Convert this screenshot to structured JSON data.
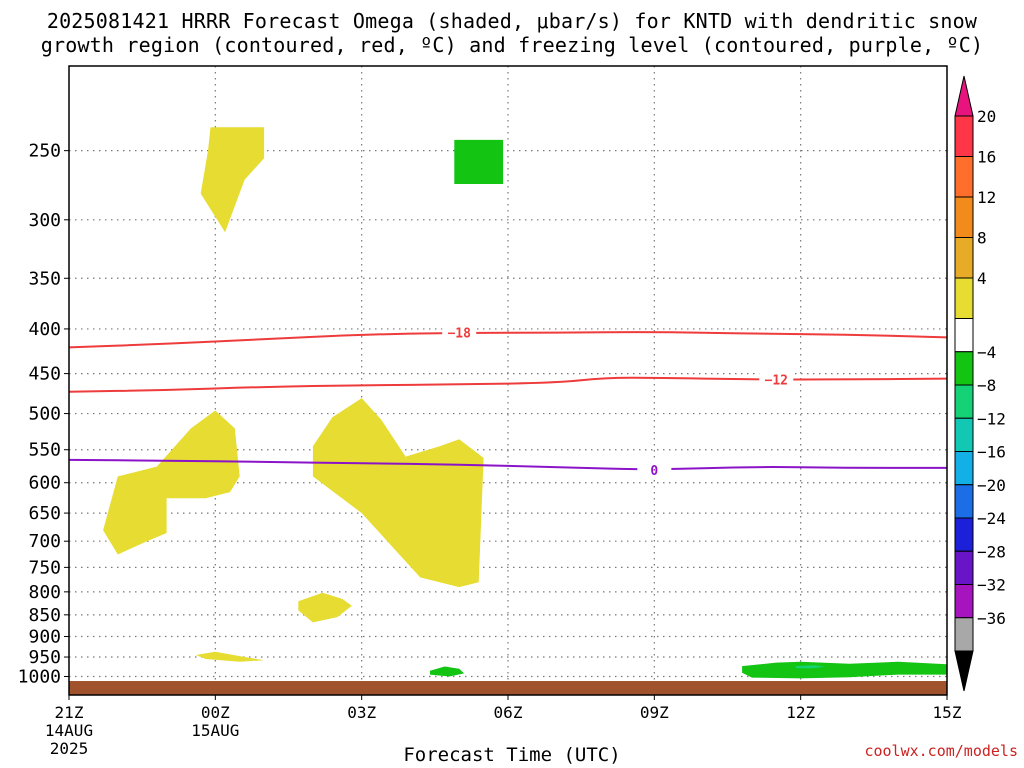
{
  "title": {
    "line1": "2025081421 HRRR Forecast Omega (shaded, μbar/s) for KNTD with dendritic snow",
    "line2": "growth region (contoured, red, ºC) and freezing level (contoured, purple, ºC)"
  },
  "credit": "coolwx.com/models",
  "chart_data": {
    "type": "heatmap",
    "xlabel": "Forecast Time (UTC)",
    "x_unit": "forecast hour",
    "x_ticks": [
      {
        "value": 0,
        "lines": [
          "21Z",
          "14AUG",
          "2025"
        ]
      },
      {
        "value": 3,
        "lines": [
          "00Z",
          "15AUG"
        ]
      },
      {
        "value": 6,
        "lines": [
          "03Z"
        ]
      },
      {
        "value": 9,
        "lines": [
          "06Z"
        ]
      },
      {
        "value": 12,
        "lines": [
          "09Z"
        ]
      },
      {
        "value": 15,
        "lines": [
          "12Z"
        ]
      },
      {
        "value": 18,
        "lines": [
          "15Z"
        ]
      }
    ],
    "xlim": [
      0,
      18
    ],
    "y_unit": "hPa",
    "y_scale": "log",
    "y_reversed": true,
    "ylim": [
      1050,
      200
    ],
    "y_ticks": [
      250,
      300,
      350,
      400,
      450,
      500,
      550,
      600,
      650,
      700,
      750,
      800,
      850,
      900,
      950,
      1000
    ],
    "grid": true,
    "colorbar": {
      "levels": [
        "20",
        "16",
        "12",
        "8",
        "4",
        "−4",
        "−8",
        "−12",
        "−16",
        "−20",
        "−24",
        "−28",
        "−32",
        "−36"
      ],
      "colors": [
        "#ff3548",
        "#ff6e2a",
        "#f28a1c",
        "#e8ab28",
        "#e6dc32",
        "#ffffff",
        "#13c413",
        "#15d277",
        "#12c8b4",
        "#12b0e6",
        "#1c6ee6",
        "#1c20d8",
        "#6a14c8",
        "#a614c0",
        "#a8a8a8"
      ],
      "top_cap": "#e8147e",
      "bottom_cap": "#000000"
    },
    "shaded_regions": [
      {
        "value_range": [
          4,
          8
        ],
        "color": "#e6dc32",
        "points": [
          [
            2.9,
            235
          ],
          [
            4.0,
            235
          ],
          [
            4.0,
            255
          ],
          [
            3.6,
            270
          ],
          [
            3.2,
            310
          ],
          [
            2.7,
            280
          ],
          [
            2.85,
            250
          ]
        ]
      },
      {
        "value_range": [
          -8,
          -4
        ],
        "color": "#13c413",
        "points": [
          [
            7.9,
            243
          ],
          [
            8.9,
            243
          ],
          [
            8.9,
            273
          ],
          [
            7.9,
            273
          ]
        ]
      },
      {
        "value_range": [
          4,
          8
        ],
        "color": "#e6dc32",
        "points": [
          [
            1.0,
            590
          ],
          [
            1.8,
            575
          ],
          [
            2.5,
            520
          ],
          [
            3.0,
            496
          ],
          [
            3.4,
            520
          ],
          [
            3.5,
            590
          ],
          [
            3.3,
            615
          ],
          [
            2.8,
            625
          ],
          [
            2.0,
            625
          ],
          [
            2.0,
            685
          ],
          [
            1.6,
            700
          ],
          [
            1.0,
            725
          ],
          [
            0.7,
            680
          ]
        ]
      },
      {
        "value_range": [
          4,
          8
        ],
        "color": "#e6dc32",
        "points": [
          [
            5.0,
            545
          ],
          [
            5.4,
            505
          ],
          [
            6.0,
            480
          ],
          [
            6.4,
            508
          ],
          [
            6.9,
            560
          ],
          [
            7.6,
            545
          ],
          [
            8.0,
            535
          ],
          [
            8.5,
            562
          ],
          [
            8.4,
            780
          ],
          [
            8.0,
            790
          ],
          [
            7.2,
            770
          ],
          [
            6.0,
            650
          ],
          [
            5.0,
            590
          ]
        ]
      },
      {
        "value_range": [
          4,
          8
        ],
        "color": "#e6dc32",
        "points": [
          [
            4.7,
            820
          ],
          [
            5.2,
            802
          ],
          [
            5.6,
            815
          ],
          [
            5.8,
            830
          ],
          [
            5.5,
            855
          ],
          [
            5.0,
            867
          ],
          [
            4.7,
            840
          ]
        ]
      },
      {
        "value_range": [
          4,
          8
        ],
        "color": "#e6dc32",
        "points": [
          [
            2.6,
            945
          ],
          [
            3.0,
            937
          ],
          [
            3.6,
            950
          ],
          [
            4.0,
            958
          ],
          [
            3.5,
            962
          ],
          [
            2.8,
            955
          ]
        ]
      },
      {
        "value_range": [
          -8,
          -4
        ],
        "color": "#13c413",
        "points": [
          [
            7.4,
            985
          ],
          [
            7.7,
            974
          ],
          [
            8.0,
            980
          ],
          [
            8.1,
            992
          ],
          [
            7.8,
            1000
          ],
          [
            7.4,
            995
          ]
        ]
      },
      {
        "value_range": [
          -8,
          -4
        ],
        "color": "#13c413",
        "points": [
          [
            13.8,
            973
          ],
          [
            14.5,
            964
          ],
          [
            15.0,
            962
          ],
          [
            16.0,
            967
          ],
          [
            17.0,
            962
          ],
          [
            18.0,
            968
          ],
          [
            18.0,
            995
          ],
          [
            17.0,
            995
          ],
          [
            16.0,
            1002
          ],
          [
            15.0,
            1005
          ],
          [
            14.0,
            1003
          ],
          [
            13.8,
            990
          ]
        ]
      },
      {
        "value_range": [
          -12,
          -8
        ],
        "color": "#15d277",
        "points": [
          [
            14.9,
            973
          ],
          [
            15.3,
            971
          ],
          [
            15.5,
            975
          ],
          [
            15.2,
            979
          ],
          [
            14.9,
            978
          ]
        ]
      }
    ],
    "series": [
      {
        "name": "−18",
        "color": "#ee3b3b",
        "label_at": 8.0,
        "x": [
          0,
          2,
          4,
          6,
          8,
          10,
          12,
          14,
          16,
          18
        ],
        "y": [
          420,
          416,
          411,
          406,
          404,
          404,
          403,
          405,
          406,
          409
        ]
      },
      {
        "name": "−12",
        "color": "#ee3b3b",
        "label_at": 14.5,
        "x": [
          0,
          2,
          4,
          6,
          8,
          10,
          11,
          12,
          14,
          16,
          18
        ],
        "y": [
          472,
          470,
          466,
          464,
          463,
          461,
          455,
          455,
          457,
          457,
          456
        ]
      },
      {
        "name": "0",
        "color": "#8c14c8",
        "label_at": 12.0,
        "x": [
          0,
          2,
          4,
          6,
          8,
          10,
          12,
          14,
          16,
          18
        ],
        "y": [
          565,
          566,
          568,
          570,
          572,
          576,
          580,
          575,
          577,
          577
        ]
      }
    ],
    "terrain": {
      "color": "#a0522d",
      "pressure": 1012
    }
  }
}
